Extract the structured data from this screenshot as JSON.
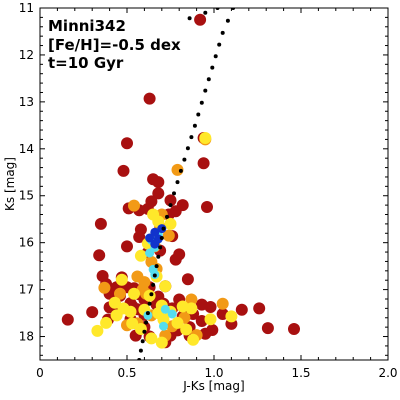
{
  "chart_data": {
    "type": "scatter",
    "xlabel": "J-Ks [mag]",
    "ylabel": "Ks [mag]",
    "xlim": [
      0,
      2.0
    ],
    "ylim": [
      18.5,
      11
    ],
    "y_inverted": true,
    "x_ticks": [
      "0",
      "0.5",
      "1.0",
      "1.5",
      "2.0"
    ],
    "x_tick_values": [
      0,
      0.5,
      1.0,
      1.5,
      2.0
    ],
    "y_ticks": [
      "11",
      "12",
      "13",
      "14",
      "15",
      "16",
      "17",
      "18"
    ],
    "y_tick_values": [
      11,
      12,
      13,
      14,
      15,
      16,
      17,
      18
    ],
    "annotations": [
      "Minni342",
      "[Fe/H]=-0.5 dex",
      "t=10 Gyr"
    ],
    "series": [
      {
        "kind": "stars",
        "color": "#a81010",
        "points": [
          [
            0.92,
            11.25
          ],
          [
            0.5,
            13.88
          ],
          [
            0.63,
            12.93
          ],
          [
            0.94,
            13.77
          ],
          [
            0.94,
            14.31
          ],
          [
            0.48,
            14.47
          ],
          [
            0.68,
            14.71
          ],
          [
            0.68,
            14.95
          ],
          [
            0.64,
            15.12
          ],
          [
            0.62,
            15.28
          ],
          [
            0.51,
            15.27
          ],
          [
            0.75,
            15.1
          ],
          [
            0.78,
            15.33
          ],
          [
            0.96,
            15.24
          ],
          [
            0.35,
            15.6
          ],
          [
            0.34,
            16.27
          ],
          [
            0.5,
            16.08
          ],
          [
            0.57,
            15.88
          ],
          [
            0.76,
            15.86
          ],
          [
            0.8,
            16.25
          ],
          [
            0.47,
            16.74
          ],
          [
            0.62,
            16.21
          ],
          [
            0.78,
            16.36
          ],
          [
            0.62,
            16.97
          ],
          [
            0.38,
            16.88
          ],
          [
            0.4,
            17.09
          ],
          [
            0.43,
            17.29
          ],
          [
            0.46,
            17.13
          ],
          [
            0.5,
            16.95
          ],
          [
            0.52,
            17.29
          ],
          [
            0.54,
            16.97
          ],
          [
            0.57,
            17.1
          ],
          [
            0.6,
            17.21
          ],
          [
            0.68,
            17.15
          ],
          [
            0.72,
            16.93
          ],
          [
            0.71,
            17.3
          ],
          [
            0.44,
            17.53
          ],
          [
            0.39,
            17.64
          ],
          [
            0.52,
            17.63
          ],
          [
            0.56,
            17.42
          ],
          [
            0.6,
            17.54
          ],
          [
            0.76,
            17.4
          ],
          [
            0.8,
            17.21
          ],
          [
            0.85,
            17.39
          ],
          [
            0.82,
            17.57
          ],
          [
            0.88,
            17.52
          ],
          [
            0.93,
            17.32
          ],
          [
            0.98,
            17.37
          ],
          [
            1.05,
            17.52
          ],
          [
            1.16,
            17.43
          ],
          [
            1.26,
            17.4
          ],
          [
            0.16,
            17.64
          ],
          [
            0.6,
            17.8
          ],
          [
            0.55,
            17.98
          ],
          [
            0.63,
            18.0
          ],
          [
            0.72,
            18.12
          ],
          [
            0.86,
            17.98
          ],
          [
            0.93,
            17.67
          ],
          [
            0.99,
            17.86
          ],
          [
            1.1,
            17.73
          ],
          [
            1.31,
            17.82
          ],
          [
            1.46,
            17.84
          ],
          [
            0.75,
            17.98
          ],
          [
            0.53,
            17.35
          ],
          [
            0.63,
            16.95
          ],
          [
            0.67,
            17.32
          ],
          [
            0.44,
            16.95
          ],
          [
            0.86,
            17.8
          ],
          [
            0.95,
            17.94
          ],
          [
            0.4,
            17.38
          ],
          [
            0.79,
            17.87
          ],
          [
            0.69,
            16.17
          ],
          [
            0.58,
            15.72
          ],
          [
            0.74,
            15.4
          ],
          [
            0.82,
            15.2
          ],
          [
            0.57,
            15.31
          ],
          [
            0.36,
            16.71
          ],
          [
            0.85,
            16.78
          ],
          [
            0.3,
            17.48
          ],
          [
            0.65,
            14.65
          ]
        ]
      },
      {
        "kind": "stars",
        "color": "#f29a16",
        "points": [
          [
            0.54,
            15.21
          ],
          [
            0.69,
            15.68
          ],
          [
            0.74,
            15.85
          ],
          [
            0.64,
            16.41
          ],
          [
            0.7,
            15.4
          ],
          [
            0.66,
            16.08
          ],
          [
            0.6,
            16.84
          ],
          [
            0.64,
            17.55
          ],
          [
            0.56,
            17.72
          ],
          [
            0.61,
            17.09
          ],
          [
            0.76,
            17.78
          ],
          [
            0.83,
            17.6
          ],
          [
            0.5,
            17.76
          ],
          [
            0.46,
            17.09
          ],
          [
            0.37,
            16.96
          ],
          [
            0.59,
            17.0
          ],
          [
            0.56,
            16.72
          ],
          [
            0.67,
            16.56
          ],
          [
            0.79,
            14.45
          ],
          [
            0.95,
            13.8
          ],
          [
            0.87,
            17.21
          ],
          [
            1.05,
            17.3
          ],
          [
            0.72,
            17.98
          ],
          [
            0.9,
            17.97
          ]
        ]
      },
      {
        "kind": "stars",
        "color": "#ffe82a",
        "points": [
          [
            0.64,
            15.93
          ],
          [
            0.62,
            16.02
          ],
          [
            0.68,
            15.55
          ],
          [
            0.67,
            16.72
          ],
          [
            0.72,
            16.93
          ],
          [
            0.63,
            17.13
          ],
          [
            0.6,
            17.43
          ],
          [
            0.52,
            17.47
          ],
          [
            0.71,
            17.64
          ],
          [
            0.79,
            17.71
          ],
          [
            0.48,
            17.4
          ],
          [
            0.53,
            17.72
          ],
          [
            0.68,
            17.5
          ],
          [
            0.82,
            17.36
          ],
          [
            0.44,
            17.55
          ],
          [
            0.7,
            17.34
          ],
          [
            0.58,
            17.84
          ],
          [
            0.64,
            18.04
          ],
          [
            0.7,
            18.13
          ],
          [
            0.95,
            13.77
          ],
          [
            0.84,
            17.85
          ],
          [
            0.58,
            16.28
          ],
          [
            0.75,
            15.6
          ],
          [
            0.65,
            15.4
          ],
          [
            0.47,
            16.79
          ],
          [
            0.54,
            17.09
          ],
          [
            0.98,
            17.63
          ],
          [
            1.1,
            17.57
          ],
          [
            0.38,
            17.71
          ],
          [
            0.43,
            17.28
          ],
          [
            0.33,
            17.88
          ],
          [
            0.87,
            17.4
          ],
          [
            0.88,
            18.07
          ],
          [
            0.75,
            17.47
          ]
        ]
      },
      {
        "kind": "density",
        "color": "#55ddee",
        "points": [
          [
            0.64,
            15.95
          ],
          [
            0.66,
            16.1
          ],
          [
            0.68,
            15.83
          ],
          [
            0.65,
            16.57
          ],
          [
            0.66,
            16.68
          ],
          [
            0.72,
            17.42
          ],
          [
            0.76,
            17.52
          ],
          [
            0.71,
            17.78
          ],
          [
            0.62,
            17.55
          ],
          [
            0.63,
            16.22
          ]
        ]
      },
      {
        "kind": "density",
        "color": "#1133cc",
        "points": [
          [
            0.66,
            15.78
          ],
          [
            0.68,
            15.92
          ],
          [
            0.7,
            15.7
          ],
          [
            0.66,
            16.03
          ],
          [
            0.63,
            15.9
          ]
        ]
      },
      {
        "kind": "isochrone",
        "color": "#000000",
        "points": [
          [
            1.11,
            11.0
          ],
          [
            1.08,
            11.27
          ],
          [
            1.05,
            11.53
          ],
          [
            1.03,
            11.78
          ],
          [
            1.01,
            12.03
          ],
          [
            0.99,
            12.27
          ],
          [
            0.97,
            12.52
          ],
          [
            0.95,
            12.76
          ],
          [
            0.93,
            13.02
          ],
          [
            0.91,
            13.27
          ],
          [
            0.89,
            13.51
          ],
          [
            0.87,
            13.75
          ],
          [
            0.85,
            13.99
          ],
          [
            0.83,
            14.23
          ],
          [
            0.81,
            14.47
          ],
          [
            0.79,
            14.71
          ],
          [
            0.77,
            14.95
          ],
          [
            0.75,
            15.2
          ],
          [
            0.73,
            15.45
          ],
          [
            0.71,
            15.7
          ],
          [
            0.7,
            15.9
          ],
          [
            0.69,
            16.1
          ],
          [
            0.68,
            16.3
          ],
          [
            0.67,
            16.5
          ],
          [
            0.66,
            16.7
          ],
          [
            0.65,
            16.9
          ],
          [
            0.64,
            17.1
          ],
          [
            0.63,
            17.3
          ],
          [
            0.62,
            17.5
          ],
          [
            0.61,
            17.7
          ],
          [
            0.6,
            17.9
          ],
          [
            0.59,
            18.1
          ],
          [
            0.58,
            18.3
          ],
          [
            0.57,
            18.5
          ],
          [
            0.86,
            11.22
          ],
          [
            0.95,
            11.1
          ],
          [
            1.02,
            11.0
          ]
        ]
      }
    ]
  }
}
